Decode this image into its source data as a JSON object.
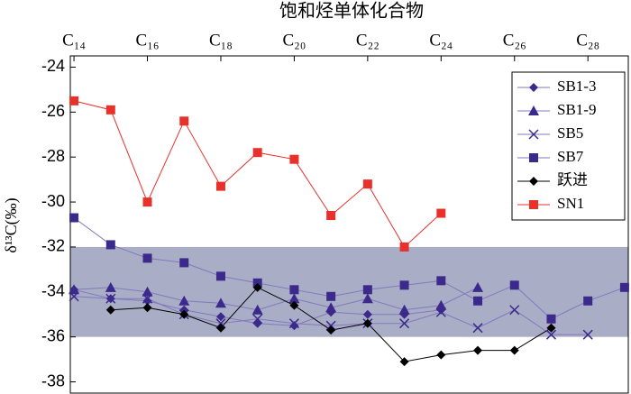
{
  "chart_data": {
    "type": "line",
    "title": "饱和烃单体化合物",
    "y_label": "δ¹³C(‰)",
    "x": [
      14,
      15,
      16,
      17,
      18,
      19,
      20,
      21,
      22,
      23,
      24,
      25,
      26,
      27,
      28,
      29
    ],
    "xlim": [
      13.9,
      29.1
    ],
    "xticks": [
      {
        "value": 14,
        "label": "C₁₄"
      },
      {
        "value": 16,
        "label": "C₁₆"
      },
      {
        "value": 18,
        "label": "C₁₈"
      },
      {
        "value": 20,
        "label": "C₂₀"
      },
      {
        "value": 22,
        "label": "C₂₂"
      },
      {
        "value": 24,
        "label": "C₂₄"
      },
      {
        "value": 26,
        "label": "C₂₆"
      },
      {
        "value": 28,
        "label": "C₂₈"
      }
    ],
    "ylim": [
      -38.5,
      -23.5
    ],
    "yticks": [
      -38,
      -36,
      -34,
      -32,
      -30,
      -28,
      -26,
      -24
    ],
    "shaded_range": [
      -36,
      -32
    ],
    "shaded_color": "#a9adc6",
    "legend": "top-right",
    "series": [
      {
        "name": "SB1-3",
        "color": "#3b2a8c",
        "line_color": "#8379bb",
        "marker": "diamond",
        "values": [
          -33.9,
          -34.3,
          -34.4,
          -34.8,
          -35.1,
          -35.4,
          -35.5,
          -34.9,
          -35.0,
          -35.0,
          -34.8,
          null,
          null,
          null,
          null,
          null
        ]
      },
      {
        "name": "SB1-9",
        "color": "#3b2a8c",
        "line_color": "#8379bb",
        "marker": "triangle",
        "values": [
          -33.9,
          -33.8,
          -34.0,
          -34.4,
          -34.5,
          -34.8,
          -34.3,
          -34.7,
          -34.3,
          -34.8,
          -34.6,
          -33.8,
          null,
          null,
          null,
          null
        ]
      },
      {
        "name": "SB5",
        "color": "#3b2a8c",
        "line_color": "#8379bb",
        "marker": "x",
        "values": [
          -34.2,
          -34.3,
          -34.3,
          -35.0,
          -35.4,
          -35.2,
          -35.4,
          -35.5,
          -35.4,
          -35.4,
          -34.9,
          -35.6,
          -34.8,
          -35.9,
          -35.9,
          null
        ]
      },
      {
        "name": "SB7",
        "color": "#3b2a8c",
        "line_color": "#8379bb",
        "marker": "square",
        "values": [
          -30.7,
          -31.9,
          -32.5,
          -32.7,
          -33.3,
          -33.6,
          -33.9,
          -34.2,
          -33.9,
          -33.7,
          -33.5,
          -34.4,
          -33.7,
          -35.2,
          -34.4,
          -33.8
        ]
      },
      {
        "name": "跃进",
        "color": "#000000",
        "line_color": "#000000",
        "marker": "diamond",
        "values": [
          null,
          -34.8,
          -34.7,
          -35.0,
          -35.6,
          -33.8,
          -34.6,
          -35.7,
          -35.4,
          -37.1,
          -36.8,
          -36.6,
          -36.6,
          -35.6,
          null,
          null
        ]
      },
      {
        "name": "SN1",
        "color": "#e8312a",
        "line_color": "#e8312a",
        "marker": "square",
        "values": [
          -25.5,
          -25.9,
          -30.0,
          -26.4,
          -29.3,
          -27.8,
          -28.1,
          -30.6,
          -29.2,
          -32.0,
          -30.5,
          null,
          null,
          null,
          null,
          null
        ]
      }
    ]
  }
}
